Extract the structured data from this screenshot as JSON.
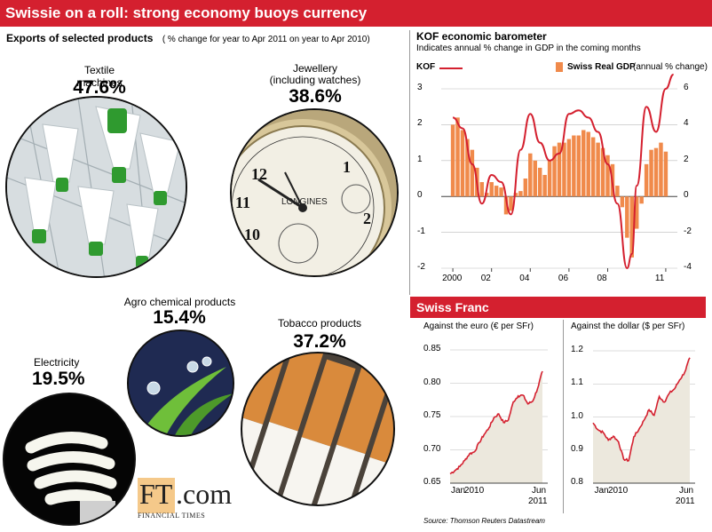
{
  "header": {
    "title": "Swissie on a roll: strong economy buoys currency"
  },
  "exports": {
    "title": "Exports of selected products",
    "subtitle": "( % change for year to Apr 2011 on year to Apr 2010)",
    "items": [
      {
        "name": "Textile machines",
        "value": "47.6%"
      },
      {
        "name": "Jewellery\n(including watches)",
        "value": "38.6%"
      },
      {
        "name": "Agro chemical  products",
        "value": "15.4%"
      },
      {
        "name": "Electricity",
        "value": "19.5%"
      },
      {
        "name": "Tobacco products",
        "value": "37.2%"
      }
    ]
  },
  "logo": {
    "brand_left": "FT",
    "brand_right": ".com",
    "tagline": "FINANCIAL TIMES"
  },
  "kof": {
    "title": "KOF economic barometer",
    "subtitle": "Indicates annual % change in GDP in the coming months",
    "legend_kof": "KOF",
    "legend_gdp": "Swiss Real GDP",
    "legend_gdp_note": "(annual % change)",
    "left_ticks": [
      "3",
      "2",
      "1",
      "0",
      "-1",
      "-2"
    ],
    "right_ticks": [
      "6",
      "4",
      "2",
      "0",
      "-2",
      "-4"
    ],
    "x_ticks": [
      "2000",
      "02",
      "04",
      "06",
      "08",
      "11"
    ]
  },
  "franc": {
    "section_title": "Swiss Franc",
    "euro_title": "Against the euro  (€ per SFr)",
    "dollar_title": "Against the dollar  ($ per SFr)",
    "euro_ticks": [
      "0.85",
      "0.80",
      "0.75",
      "0.70",
      "0.65"
    ],
    "dollar_ticks": [
      "1.2",
      "1.1",
      "1.0",
      "0.9",
      "0.8"
    ],
    "x_jan": "Jan",
    "x_2010": "2010",
    "x_jun": "Jun",
    "x_2011": "2011"
  },
  "source": "Source: Thomson Reuters Datastream",
  "colors": {
    "accent": "#d4202f",
    "gdp_bar": "#f08a4b",
    "line": "#d4202f"
  },
  "chart_data": [
    {
      "type": "bar",
      "title": "KOF economic barometer",
      "series": [
        {
          "name": "Swiss Real GDP",
          "axis": "right",
          "x": [
            2000.0,
            2000.25,
            2000.5,
            2000.75,
            2001.0,
            2001.25,
            2001.5,
            2001.75,
            2002.0,
            2002.25,
            2002.5,
            2002.75,
            2003.0,
            2003.25,
            2003.5,
            2003.75,
            2004.0,
            2004.25,
            2004.5,
            2004.75,
            2005.0,
            2005.25,
            2005.5,
            2005.75,
            2006.0,
            2006.25,
            2006.5,
            2006.75,
            2007.0,
            2007.25,
            2007.5,
            2007.75,
            2008.0,
            2008.25,
            2008.5,
            2008.75,
            2009.0,
            2009.25,
            2009.5,
            2009.75,
            2010.0,
            2010.25,
            2010.5,
            2010.75,
            2011.0
          ],
          "values": [
            4.0,
            4.4,
            3.7,
            3.2,
            2.6,
            1.6,
            0.8,
            0.2,
            0.8,
            0.6,
            0.5,
            -1.0,
            -0.8,
            0.2,
            0.3,
            1.0,
            2.4,
            2.0,
            1.6,
            1.2,
            2.0,
            2.8,
            3.0,
            3.0,
            3.2,
            3.4,
            3.4,
            3.7,
            3.6,
            3.3,
            3.0,
            2.7,
            2.3,
            1.8,
            0.6,
            -0.6,
            -2.3,
            -3.4,
            -1.8,
            -0.4,
            1.8,
            2.6,
            2.7,
            3.0,
            2.5
          ]
        },
        {
          "name": "KOF",
          "axis": "left",
          "type": "line",
          "x": [
            2000.0,
            2000.5,
            2001.0,
            2001.5,
            2002.0,
            2002.5,
            2003.0,
            2003.5,
            2004.0,
            2004.5,
            2005.0,
            2005.5,
            2006.0,
            2006.5,
            2007.0,
            2007.5,
            2008.0,
            2008.5,
            2009.0,
            2009.25,
            2009.5,
            2010.0,
            2010.5,
            2011.0,
            2011.4
          ],
          "values": [
            2.2,
            1.9,
            0.9,
            -0.2,
            0.6,
            0.4,
            -0.5,
            1.3,
            2.3,
            1.5,
            1.0,
            1.2,
            2.3,
            2.4,
            2.2,
            1.8,
            0.9,
            -0.2,
            -2.0,
            -1.6,
            0.3,
            2.5,
            1.8,
            3.0,
            3.4
          ]
        }
      ],
      "ylim_left": [
        -2,
        3
      ],
      "ylim_right": [
        -4,
        6
      ],
      "xlim": [
        1999.4,
        2011.6
      ]
    },
    {
      "type": "line",
      "title": "Against the euro (€ per SFr)",
      "x": [
        "2009-11",
        "2009-12",
        "2010-01",
        "2010-02",
        "2010-03",
        "2010-04",
        "2010-05",
        "2010-06",
        "2010-07",
        "2010-08",
        "2010-09",
        "2010-10",
        "2010-11",
        "2010-12",
        "2011-01",
        "2011-02",
        "2011-03",
        "2011-04",
        "2011-05",
        "2011-06"
      ],
      "values": [
        0.664,
        0.669,
        0.675,
        0.684,
        0.694,
        0.697,
        0.711,
        0.723,
        0.733,
        0.748,
        0.754,
        0.741,
        0.745,
        0.772,
        0.781,
        0.782,
        0.769,
        0.773,
        0.792,
        0.818
      ],
      "ylim": [
        0.65,
        0.85
      ]
    },
    {
      "type": "line",
      "title": "Against the dollar ($ per SFr)",
      "x": [
        "2009-11",
        "2009-12",
        "2010-01",
        "2010-02",
        "2010-03",
        "2010-04",
        "2010-05",
        "2010-06",
        "2010-07",
        "2010-08",
        "2010-09",
        "2010-10",
        "2010-11",
        "2010-12",
        "2011-01",
        "2011-02",
        "2011-03",
        "2011-04",
        "2011-05",
        "2011-06"
      ],
      "values": [
        0.982,
        0.961,
        0.953,
        0.93,
        0.942,
        0.925,
        0.873,
        0.868,
        0.94,
        0.962,
        0.99,
        1.022,
        1.005,
        1.062,
        1.045,
        1.072,
        1.085,
        1.112,
        1.135,
        1.179
      ],
      "ylim": [
        0.8,
        1.2
      ]
    }
  ]
}
